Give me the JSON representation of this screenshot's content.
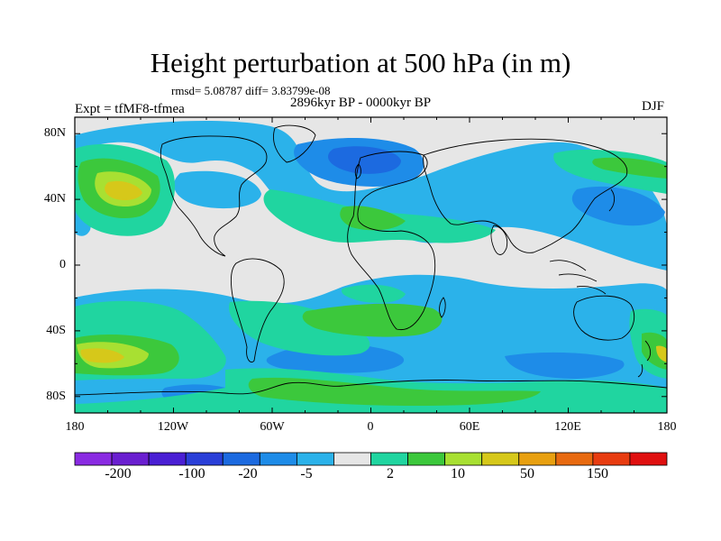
{
  "title": "Height perturbation at 500 hPa (in m)",
  "stats": "rmsd= 5.08787 diff= 3.83799e-08",
  "period": "2896kyr BP - 0000kyr BP",
  "experiment": "Expt = tfMF8-tfmea",
  "season": "DJF",
  "map": {
    "projection": "cylindrical equidistant",
    "lon_range": [
      -180,
      180
    ],
    "lat_range": [
      -90,
      90
    ],
    "y_ticks": [
      "80N",
      "40N",
      "0",
      "40S",
      "80S"
    ],
    "x_ticks": [
      "180",
      "120W",
      "60W",
      "0",
      "60E",
      "120E",
      "180"
    ],
    "background_color": "#e6e6e6",
    "coastline_color": "#000000"
  },
  "colorbar": {
    "colors": [
      "#8a2be2",
      "#6a1fd0",
      "#4a1fd4",
      "#2a3fd8",
      "#1c6ae0",
      "#1e8ce8",
      "#2bb2ea",
      "#e6e6e6",
      "#20d5a0",
      "#3cc83c",
      "#a8e032",
      "#d6c81a",
      "#e8a010",
      "#e86a10",
      "#e83c10",
      "#e01010"
    ],
    "labels": [
      "-200",
      "-100",
      "-20",
      "-5",
      "2",
      "10",
      "50",
      "150"
    ]
  }
}
